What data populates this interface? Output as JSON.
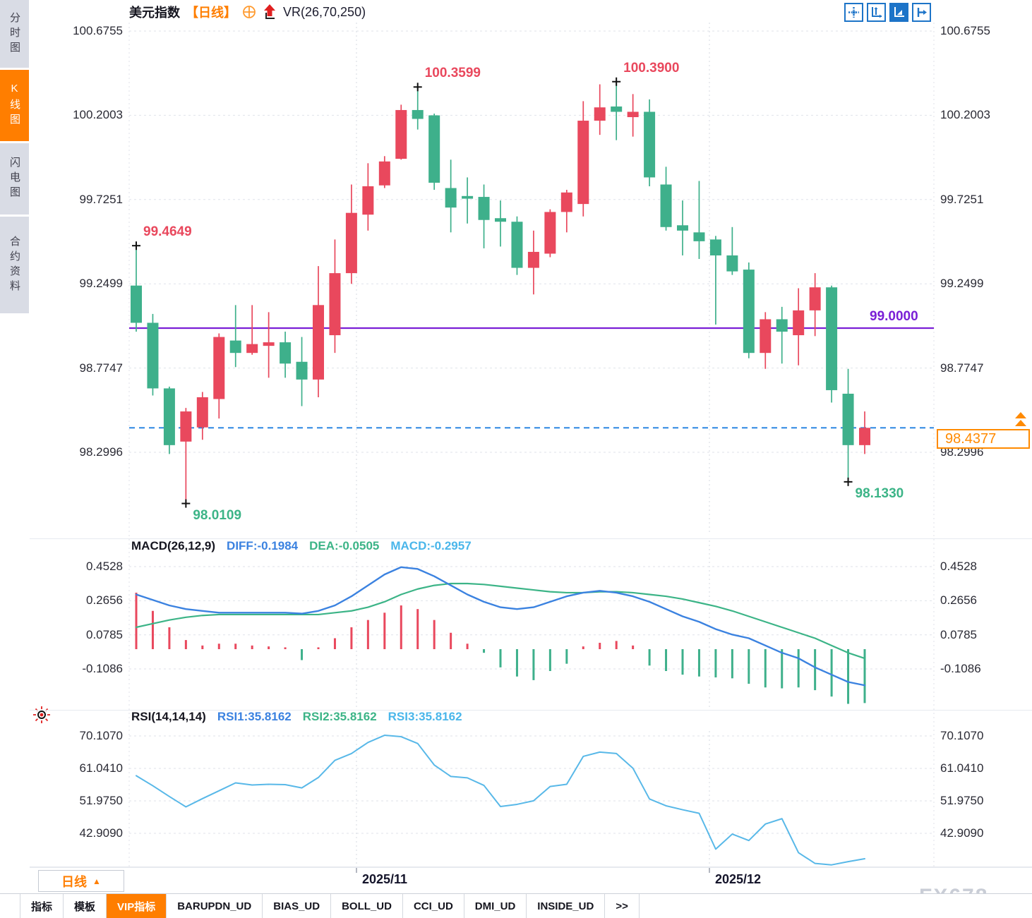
{
  "app": {
    "watermark": "FX678",
    "accent_color": "#ff7e00"
  },
  "sidebar": {
    "tabs": [
      {
        "label": "分时图",
        "active": false
      },
      {
        "label": "K线图",
        "active": true
      },
      {
        "label": "闪电图",
        "active": false
      },
      {
        "label": "合约资料",
        "active": false
      }
    ]
  },
  "header": {
    "symbol": "美元指数",
    "period": "【日线】",
    "overlay_indicator": "VR(26,70,250)"
  },
  "toolbar": {
    "buttons": [
      "crosshair-tool",
      "axis-scale-tool",
      "axis-play-tool",
      "pan-right-tool"
    ],
    "active_index": 2
  },
  "price_marker": {
    "value": "98.4377",
    "color": "#ff8a00"
  },
  "bottom": {
    "period_button": "日线",
    "period_arrow": "▲",
    "tabs": [
      {
        "label": "指标",
        "active": false
      },
      {
        "label": "模板",
        "active": false
      },
      {
        "label": "VIP指标",
        "active": true
      },
      {
        "label": "BARUPDN_UD",
        "active": false
      },
      {
        "label": "BIAS_UD",
        "active": false
      },
      {
        "label": "BOLL_UD",
        "active": false
      },
      {
        "label": "CCI_UD",
        "active": false
      },
      {
        "label": "DMI_UD",
        "active": false
      },
      {
        "label": "INSIDE_UD",
        "active": false
      },
      {
        "label": ">>",
        "active": false
      }
    ]
  },
  "chart_data": [
    {
      "type": "candlestick",
      "title": "美元指数 日线 K线图",
      "up_color": "#e9485d",
      "down_color": "#3eb08b",
      "ylim": [
        97.9,
        100.73
      ],
      "y_ticks": [
        100.6755,
        100.2003,
        99.7251,
        99.2499,
        98.7747,
        98.2996
      ],
      "x_labels": [
        "2025/11",
        "2025/12"
      ],
      "candles": [
        [
          99.24,
          99.4649,
          98.98,
          99.03
        ],
        [
          99.03,
          99.08,
          98.62,
          98.66
        ],
        [
          98.66,
          98.67,
          98.29,
          98.34
        ],
        [
          98.36,
          98.55,
          98.0109,
          98.53
        ],
        [
          98.44,
          98.64,
          98.37,
          98.61
        ],
        [
          98.6,
          98.97,
          98.49,
          98.95
        ],
        [
          98.93,
          99.13,
          98.78,
          98.86
        ],
        [
          98.86,
          99.13,
          98.85,
          98.91
        ],
        [
          98.9,
          99.09,
          98.72,
          98.92
        ],
        [
          98.92,
          98.98,
          98.72,
          98.8
        ],
        [
          98.81,
          98.95,
          98.56,
          98.71
        ],
        [
          98.71,
          99.35,
          98.61,
          99.13
        ],
        [
          98.96,
          99.5,
          98.86,
          99.31
        ],
        [
          99.31,
          99.81,
          99.25,
          99.65
        ],
        [
          99.64,
          99.93,
          99.55,
          99.8
        ],
        [
          99.805,
          99.97,
          99.79,
          99.94
        ],
        [
          99.955,
          100.26,
          99.95,
          100.23
        ],
        [
          100.23,
          100.3599,
          100.12,
          100.18
        ],
        [
          100.2,
          100.21,
          99.78,
          99.82
        ],
        [
          99.79,
          99.95,
          99.54,
          99.68
        ],
        [
          99.745,
          99.85,
          99.59,
          99.73
        ],
        [
          99.74,
          99.81,
          99.45,
          99.61
        ],
        [
          99.62,
          99.72,
          99.46,
          99.6
        ],
        [
          99.6,
          99.63,
          99.3,
          99.34
        ],
        [
          99.34,
          99.55,
          99.19,
          99.43
        ],
        [
          99.42,
          99.67,
          99.4,
          99.655
        ],
        [
          99.655,
          99.78,
          99.54,
          99.765
        ],
        [
          99.7,
          100.28,
          99.63,
          100.17
        ],
        [
          100.17,
          100.375,
          100.09,
          100.245
        ],
        [
          100.25,
          100.39,
          100.06,
          100.22
        ],
        [
          100.19,
          100.32,
          100.08,
          100.22
        ],
        [
          100.22,
          100.29,
          99.8,
          99.85
        ],
        [
          99.81,
          99.91,
          99.55,
          99.57
        ],
        [
          99.58,
          99.72,
          99.41,
          99.55
        ],
        [
          99.54,
          99.83,
          99.39,
          99.49
        ],
        [
          99.5,
          99.52,
          99.02,
          99.41
        ],
        [
          99.41,
          99.57,
          99.3,
          99.32
        ],
        [
          99.33,
          99.37,
          98.83,
          98.86
        ],
        [
          98.86,
          99.09,
          98.77,
          99.05
        ],
        [
          99.05,
          99.12,
          98.8,
          98.98
        ],
        [
          98.96,
          99.225,
          98.79,
          99.1
        ],
        [
          99.1,
          99.31,
          98.955,
          99.23
        ],
        [
          99.23,
          99.24,
          98.58,
          98.65
        ],
        [
          98.63,
          98.77,
          98.133,
          98.34
        ],
        [
          98.34,
          98.53,
          98.29,
          98.4377
        ]
      ],
      "annotations": [
        {
          "text": "99.4649",
          "candle": 0,
          "pos": "high",
          "color": "#e9485d"
        },
        {
          "text": "98.0109",
          "candle": 3,
          "pos": "low",
          "color": "#3cb487"
        },
        {
          "text": "100.3599",
          "candle": 17,
          "pos": "high",
          "color": "#e9485d"
        },
        {
          "text": "100.3900",
          "candle": 29,
          "pos": "high",
          "color": "#e9485d"
        },
        {
          "text": "98.1330",
          "candle": 43,
          "pos": "low",
          "color": "#3cb487"
        }
      ],
      "reference_lines": [
        {
          "label": "99.0000",
          "value": 99.0,
          "color": "#7a1fd6",
          "style": "solid"
        },
        {
          "label": "98.4377",
          "value": 98.4377,
          "color": "#1f7fe0",
          "style": "dashed"
        }
      ]
    },
    {
      "type": "macd_panel",
      "params_label": "MACD(26,12,9)",
      "diff_label": "DIFF:-0.1984",
      "dea_label": "DEA:-0.0505",
      "macd_label": "MACD:-0.2957",
      "y_ticks": [
        0.4528,
        0.2656,
        0.0785,
        -0.1086
      ],
      "colors": {
        "diff": "#3b82e0",
        "dea": "#3cb487",
        "hist_up": "#e9485d",
        "hist_down": "#3eb08b"
      },
      "diff": [
        0.3,
        0.27,
        0.24,
        0.22,
        0.21,
        0.2,
        0.2,
        0.2,
        0.2,
        0.2,
        0.195,
        0.21,
        0.24,
        0.29,
        0.35,
        0.41,
        0.45,
        0.44,
        0.4,
        0.35,
        0.3,
        0.26,
        0.23,
        0.22,
        0.23,
        0.26,
        0.29,
        0.31,
        0.32,
        0.31,
        0.29,
        0.26,
        0.22,
        0.18,
        0.15,
        0.11,
        0.08,
        0.06,
        0.02,
        -0.02,
        -0.05,
        -0.1,
        -0.14,
        -0.18,
        -0.1984
      ],
      "dea": [
        0.12,
        0.14,
        0.16,
        0.175,
        0.185,
        0.19,
        0.19,
        0.19,
        0.19,
        0.19,
        0.19,
        0.19,
        0.2,
        0.21,
        0.23,
        0.26,
        0.3,
        0.33,
        0.35,
        0.36,
        0.36,
        0.355,
        0.345,
        0.335,
        0.325,
        0.315,
        0.31,
        0.31,
        0.315,
        0.315,
        0.31,
        0.3,
        0.29,
        0.275,
        0.255,
        0.235,
        0.21,
        0.18,
        0.15,
        0.12,
        0.09,
        0.06,
        0.02,
        -0.02,
        -0.0505
      ],
      "histogram": [
        0.31,
        0.21,
        0.12,
        0.05,
        0.02,
        0.03,
        0.03,
        0.02,
        0.015,
        0.01,
        -0.06,
        0.01,
        0.06,
        0.12,
        0.16,
        0.2,
        0.24,
        0.22,
        0.16,
        0.09,
        0.03,
        -0.02,
        -0.1,
        -0.15,
        -0.17,
        -0.12,
        -0.08,
        0.015,
        0.035,
        0.045,
        0.02,
        -0.09,
        -0.12,
        -0.14,
        -0.15,
        -0.155,
        -0.16,
        -0.19,
        -0.21,
        -0.215,
        -0.21,
        -0.225,
        -0.26,
        -0.3,
        -0.2957
      ]
    },
    {
      "type": "rsi_panel",
      "params_label": "RSI(14,14,14)",
      "rsi1_label": "RSI1:35.8162",
      "rsi2_label": "RSI2:35.8162",
      "rsi3_label": "RSI3:35.8162",
      "y_ticks": [
        70.107,
        61.041,
        51.975,
        42.909
      ],
      "color": "#58b8e8",
      "values": [
        59.0,
        56.2,
        53.2,
        50.3,
        52.6,
        54.8,
        57.0,
        56.4,
        56.6,
        56.5,
        55.6,
        58.5,
        63.3,
        65.2,
        68.3,
        70.3,
        69.9,
        68.0,
        62.0,
        58.8,
        58.4,
        56.3,
        50.4,
        51.0,
        52.0,
        56.0,
        56.6,
        64.4,
        65.6,
        65.2,
        61.1,
        52.5,
        50.6,
        49.5,
        48.5,
        38.5,
        42.7,
        40.9,
        45.5,
        47.0,
        37.5,
        34.5,
        34.1,
        35.0,
        35.8162
      ]
    }
  ]
}
